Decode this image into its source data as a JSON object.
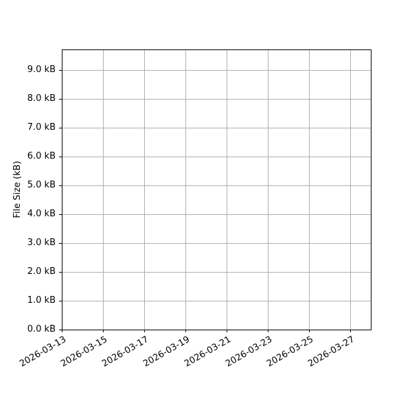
{
  "chart_data": {
    "type": "line",
    "title": "",
    "xlabel": "",
    "ylabel": "File Size (kB)",
    "series": [],
    "x_tick_labels": [
      "2026-03-13",
      "2026-03-15",
      "2026-03-17",
      "2026-03-19",
      "2026-03-21",
      "2026-03-23",
      "2026-03-25",
      "2026-03-27"
    ],
    "y_tick_labels": [
      "0.0 kB",
      "1.0 kB",
      "2.0 kB",
      "3.0 kB",
      "4.0 kB",
      "5.0 kB",
      "6.0 kB",
      "7.0 kB",
      "8.0 kB",
      "9.0 kB"
    ],
    "y_tick_values": [
      0.0,
      1.0,
      2.0,
      3.0,
      4.0,
      5.0,
      6.0,
      7.0,
      8.0,
      9.0
    ],
    "xlim": [
      "2026-03-13",
      "2026-03-28"
    ],
    "ylim": [
      0.0,
      9.71
    ],
    "grid": true,
    "legend": null,
    "colors": {
      "background": "#ffffff",
      "grid": "#b0b0b0",
      "spine": "#000000",
      "tick": "#000000",
      "text": "#000000"
    }
  }
}
